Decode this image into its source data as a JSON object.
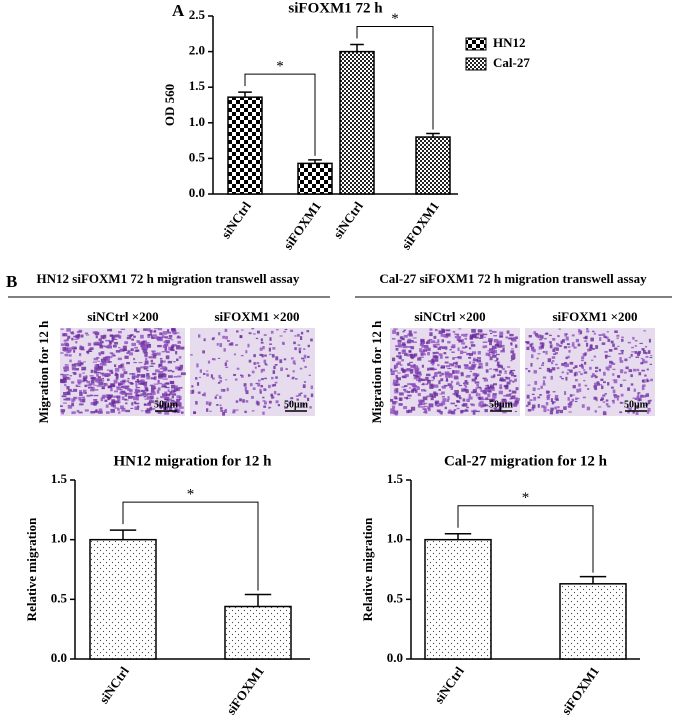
{
  "panel_labels": [
    "A",
    "B"
  ],
  "transwell": [
    {
      "title": "HN12 siFOXM1 72 h migration transwell assay",
      "row_label": "Migration for 12 h",
      "images": [
        {
          "caption": "siNCtrl ×200",
          "scale": "50μm"
        },
        {
          "caption": "siFOXM1 ×200",
          "scale": "50μm"
        }
      ]
    },
    {
      "title": "Cal-27 siFOXM1 72 h migration transwell assay",
      "row_label": "Migration for 12 h",
      "images": [
        {
          "caption": "siNCtrl ×200",
          "scale": "50μm"
        },
        {
          "caption": "siFOXM1 ×200",
          "scale": "50μm"
        }
      ]
    }
  ],
  "chart_data": [
    {
      "type": "bar",
      "title": "siFOXM1 72 h",
      "y_label": "OD 560",
      "categories": [
        "siNCtrl",
        "siFOXM1"
      ],
      "series": [
        {
          "name": "HN12",
          "color": "#000000",
          "fill": "checker",
          "values": [
            1.36,
            0.43
          ],
          "errors": [
            0.07,
            0.05
          ]
        },
        {
          "name": "Cal-27",
          "color": "#000000",
          "fill": "fine-checker",
          "values": [
            2.0,
            0.8
          ],
          "errors": [
            0.1,
            0.05
          ]
        }
      ],
      "ylim": [
        0,
        2.5
      ],
      "yticks": [
        {
          "value": 0,
          "label": "0.0"
        },
        0.5,
        {
          "value": 1,
          "label": "1.0"
        },
        1.5,
        {
          "value": 2,
          "label": "2.0"
        },
        2.5
      ],
      "annotations": [
        "*",
        "*"
      ],
      "legend": "right"
    },
    {
      "type": "bar",
      "title": "HN12 migration for 12 h",
      "y_label": "Relative migration",
      "categories": [
        "siNCtrl",
        "siFOXM1"
      ],
      "values": [
        1.0,
        0.44
      ],
      "errors": [
        0.08,
        0.1
      ],
      "color": "#000000",
      "fill": "dots",
      "ylim": [
        0,
        1.5
      ],
      "yticks": [
        {
          "value": 0,
          "label": "0.0"
        },
        0.5,
        {
          "value": 1,
          "label": "1.0"
        },
        1.5
      ],
      "annotations": [
        "*"
      ]
    },
    {
      "type": "bar",
      "title": "Cal-27 migration for 12 h",
      "y_label": "Relative migration",
      "categories": [
        "siNCtrl",
        "siFOXM1"
      ],
      "values": [
        1.0,
        0.63
      ],
      "errors": [
        0.05,
        0.06
      ],
      "color": "#000000",
      "fill": "dots",
      "ylim": [
        0,
        1.5
      ],
      "yticks": [
        {
          "value": 0,
          "label": "0.0"
        },
        0.5,
        {
          "value": 1,
          "label": "1.0"
        },
        1.5
      ],
      "annotations": [
        "*"
      ]
    }
  ]
}
